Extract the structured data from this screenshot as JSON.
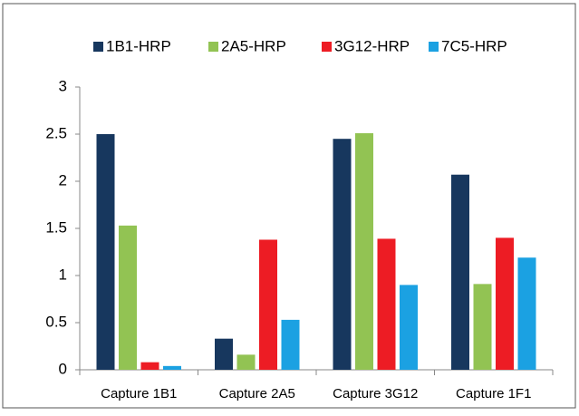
{
  "chart_data": {
    "type": "bar",
    "categories": [
      "Capture 1B1",
      "Capture 2A5",
      "Capture 3G12",
      "Capture 1F1"
    ],
    "series": [
      {
        "name": "1B1-HRP",
        "color": "#17375e",
        "values": [
          2.5,
          0.33,
          2.45,
          2.07
        ]
      },
      {
        "name": "2A5-HRP",
        "color": "#92c353",
        "values": [
          1.53,
          0.16,
          2.51,
          0.91
        ]
      },
      {
        "name": "3G12-HRP",
        "color": "#ed1c24",
        "values": [
          0.08,
          1.38,
          1.39,
          1.4
        ]
      },
      {
        "name": "7C5-HRP",
        "color": "#1ba1e2",
        "values": [
          0.04,
          0.53,
          0.9,
          1.19
        ]
      }
    ],
    "ylim": [
      0,
      3
    ],
    "yticks": [
      0,
      0.5,
      1,
      1.5,
      2,
      2.5,
      3
    ],
    "grid": false,
    "legend": "top"
  }
}
